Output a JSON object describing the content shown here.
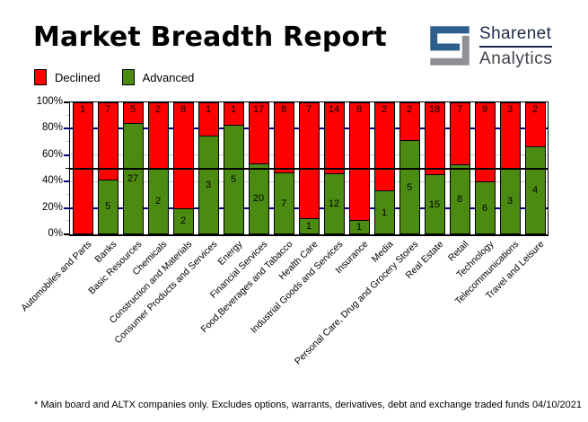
{
  "title": "Market Breadth Report",
  "logo": {
    "line1": "Sharenet",
    "line2": "Analytics",
    "mark_blue": "#2e5e8c",
    "mark_gray": "#8e9093"
  },
  "legend": {
    "items": [
      {
        "label": "Declined",
        "color": "#ff0000"
      },
      {
        "label": "Advanced",
        "color": "#4b8b12"
      }
    ]
  },
  "footer": {
    "note": "* Main board and ALTX companies only. Excludes options, warrants, derivatives, debt and exchange traded funds",
    "date": "04/10/2021"
  },
  "chart_data": {
    "type": "bar",
    "stacked": true,
    "normalized": "percent",
    "title": "Market Breadth Report",
    "xlabel": "",
    "ylabel": "",
    "ylim": [
      0,
      100
    ],
    "y_ticks": [
      "0%",
      "20%",
      "40%",
      "60%",
      "80%",
      "100%"
    ],
    "legend_position": "top-left",
    "grid": true,
    "gridlines": [
      {
        "pct": 20,
        "color": "#000080",
        "front": false
      },
      {
        "pct": 40,
        "color": "#c8c8c8",
        "front": false
      },
      {
        "pct": 50,
        "color": "#000000",
        "front": true
      },
      {
        "pct": 60,
        "color": "#c8c8c8",
        "front": false
      },
      {
        "pct": 80,
        "color": "#000080",
        "front": false
      }
    ],
    "categories": [
      "Automobiles and Parts",
      "Banks",
      "Basic Resources",
      "Chemicals",
      "Construction and Materials",
      "Consumer Products and Services",
      "Energy",
      "Financial Services",
      "Food,Beverages and Tabacco",
      "Health Care",
      "Industrial Goods and Services",
      "Insurance",
      "Media",
      "Personal Care, Drug and Grocery Stores",
      "Real Estate",
      "Retail",
      "Technology",
      "Telecommunications",
      "Travel and Leisure"
    ],
    "series": [
      {
        "name": "Declined",
        "color": "#ff0000",
        "values": [
          1,
          7,
          5,
          2,
          8,
          1,
          1,
          17,
          8,
          7,
          14,
          8,
          2,
          2,
          18,
          7,
          9,
          3,
          2
        ]
      },
      {
        "name": "Advanced",
        "color": "#4b8b12",
        "values": [
          0,
          5,
          27,
          2,
          2,
          3,
          5,
          20,
          7,
          1,
          12,
          1,
          1,
          5,
          15,
          8,
          6,
          3,
          4
        ]
      }
    ]
  }
}
